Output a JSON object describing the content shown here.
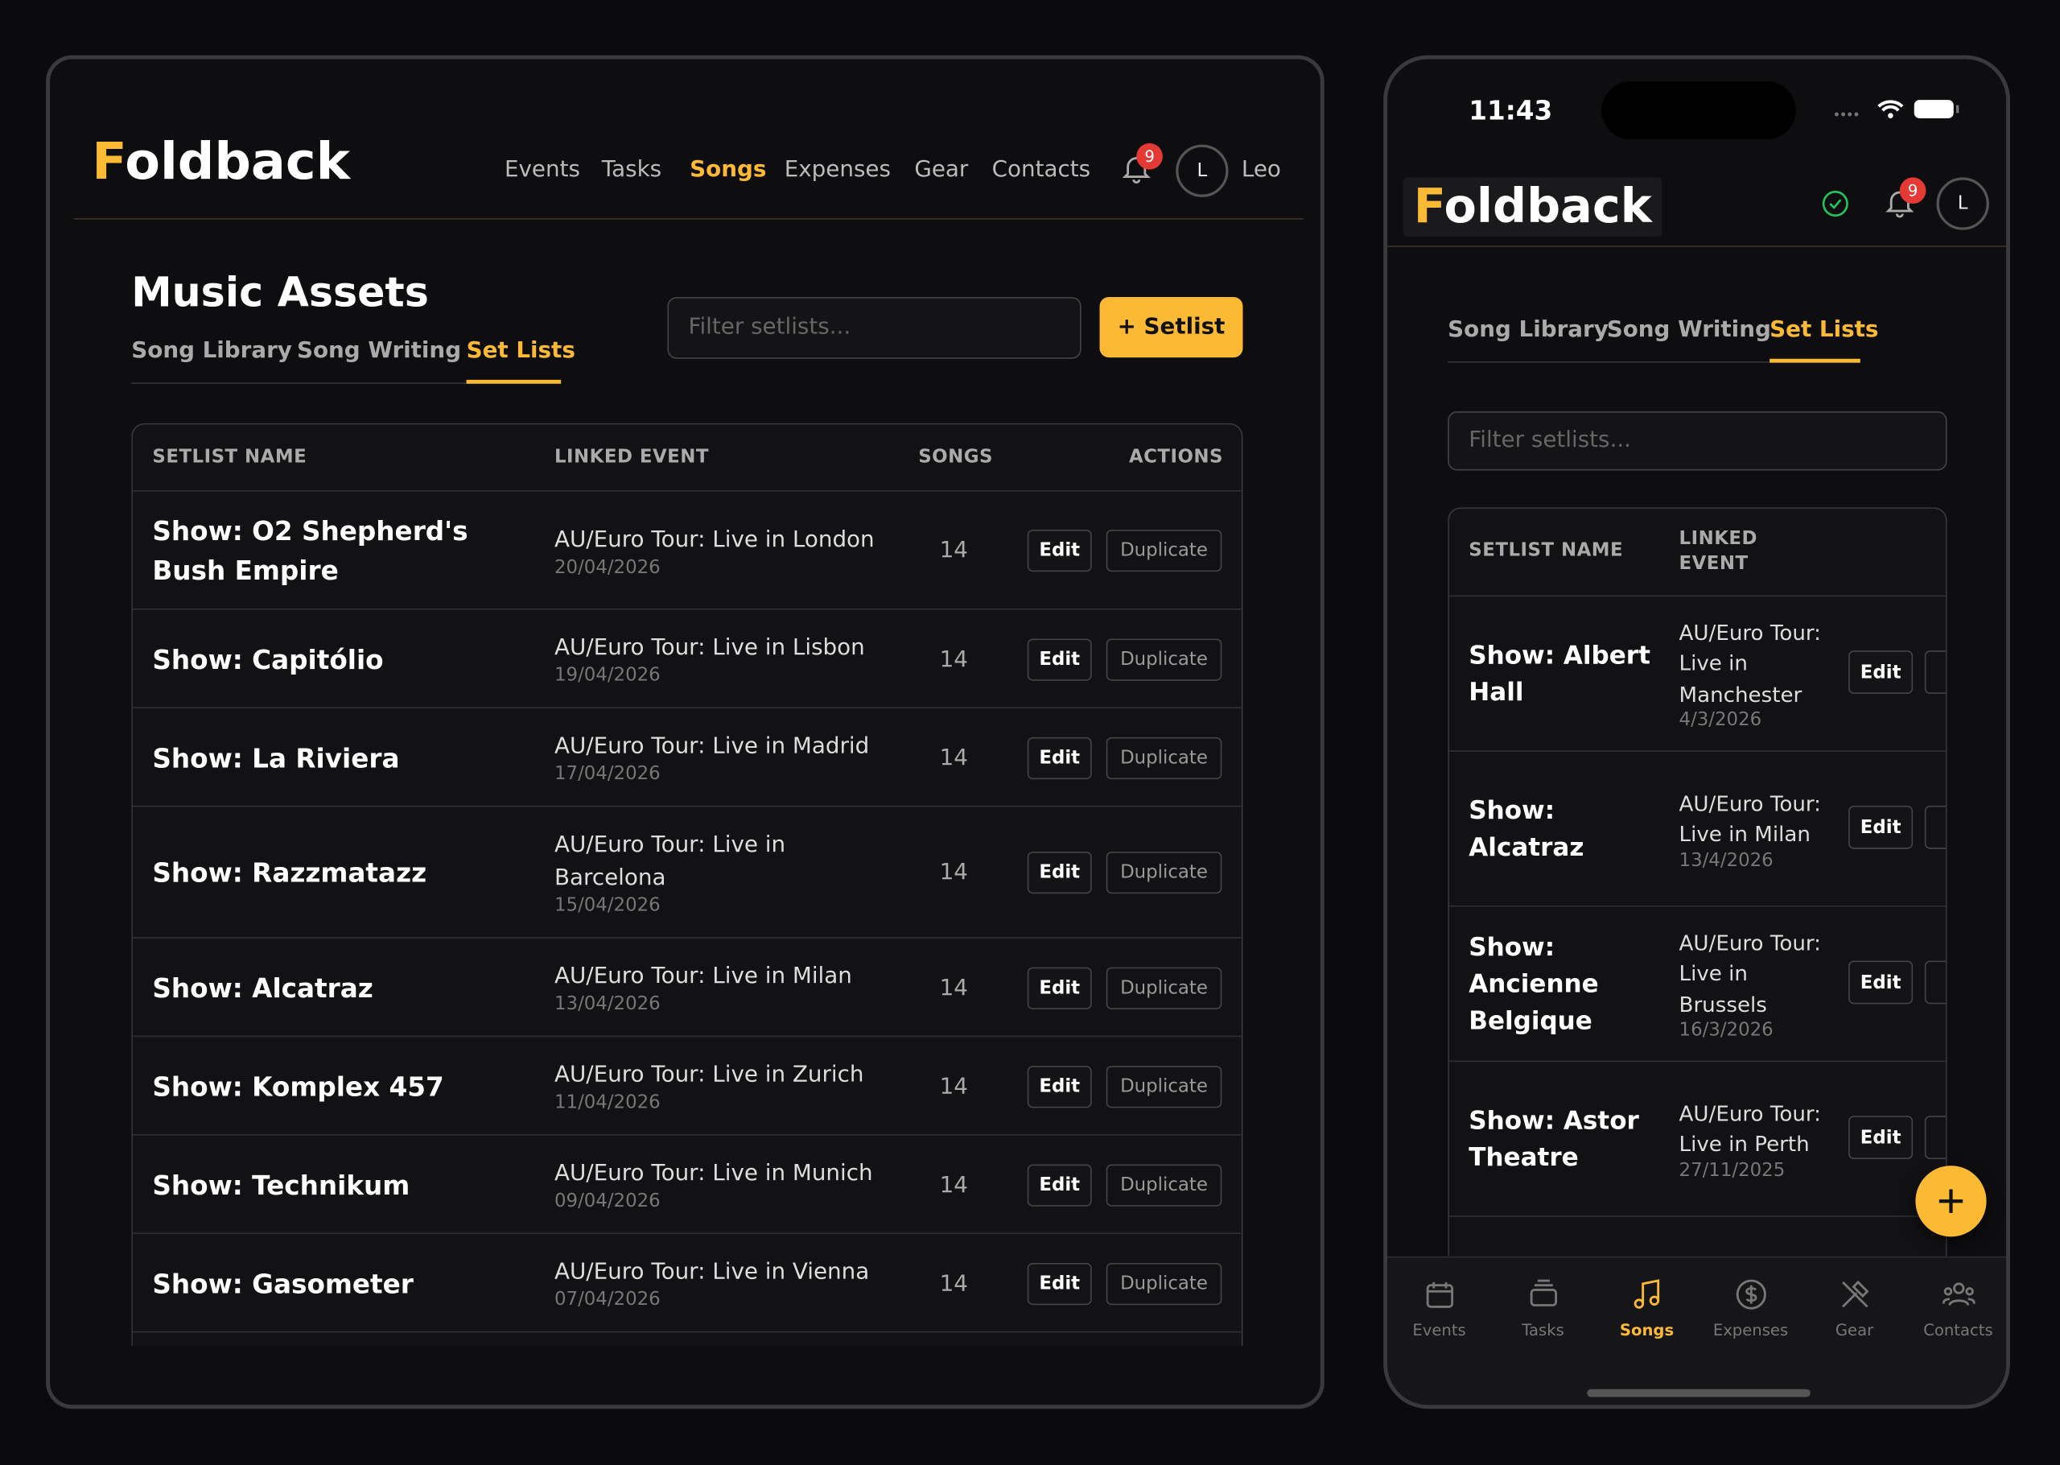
{
  "desktop": {
    "logo": "Foldback",
    "nav": [
      "Events",
      "Tasks",
      "Songs",
      "Expenses",
      "Gear",
      "Contacts"
    ],
    "active_nav": 2,
    "notifications": "9",
    "avatar": "L",
    "user": "Leo",
    "title": "Music Assets",
    "tabs": [
      "Song Library",
      "Song Writing",
      "Set Lists"
    ],
    "active_tab": 2,
    "filter_placeholder": "Filter setlists...",
    "add_button": "+ Setlist",
    "headers": [
      "SETLIST NAME",
      "LINKED EVENT",
      "SONGS",
      "ACTIONS"
    ],
    "actions": {
      "edit": "Edit",
      "duplicate": "Duplicate"
    },
    "rows": [
      {
        "name": "Show: O2 Shepherd's Bush Empire",
        "event": "AU/Euro Tour: Live in London",
        "date": "20/04/2026",
        "songs": "14"
      },
      {
        "name": "Show: Capitólio",
        "event": "AU/Euro Tour: Live in Lisbon",
        "date": "19/04/2026",
        "songs": "14"
      },
      {
        "name": "Show: La Riviera",
        "event": "AU/Euro Tour: Live in Madrid",
        "date": "17/04/2026",
        "songs": "14"
      },
      {
        "name": "Show: Razzmatazz",
        "event": "AU/Euro Tour: Live in Barcelona",
        "date": "15/04/2026",
        "songs": "14"
      },
      {
        "name": "Show: Alcatraz",
        "event": "AU/Euro Tour: Live in Milan",
        "date": "13/04/2026",
        "songs": "14"
      },
      {
        "name": "Show: Komplex 457",
        "event": "AU/Euro Tour: Live in Zurich",
        "date": "11/04/2026",
        "songs": "14"
      },
      {
        "name": "Show: Technikum",
        "event": "AU/Euro Tour: Live in Munich",
        "date": "09/04/2026",
        "songs": "14"
      },
      {
        "name": "Show: Gasometer",
        "event": "AU/Euro Tour: Live in Vienna",
        "date": "07/04/2026",
        "songs": "14"
      }
    ]
  },
  "mobile": {
    "time": "11:43",
    "logo": "Foldback",
    "notifications": "9",
    "avatar": "L",
    "tabs": [
      "Song Library",
      "Song Writing",
      "Set Lists"
    ],
    "active_tab": 2,
    "filter_placeholder": "Filter setlists...",
    "headers": [
      "SETLIST NAME",
      "LINKED EVENT"
    ],
    "actions": {
      "edit": "Edit"
    },
    "rows": [
      {
        "name": "Show: Albert Hall",
        "event": "AU/Euro Tour: Live in Manchester",
        "date": "4/3/2026"
      },
      {
        "name": "Show: Alcatraz",
        "event": "AU/Euro Tour: Live in Milan",
        "date": "13/4/2026"
      },
      {
        "name": "Show: Ancienne Belgique",
        "event": "AU/Euro Tour: Live in Brussels",
        "date": "16/3/2026"
      },
      {
        "name": "Show: Astor Theatre",
        "event": "AU/Euro Tour: Live in Perth",
        "date": "27/11/2025"
      }
    ],
    "bottom_nav": [
      "Events",
      "Tasks",
      "Songs",
      "Expenses",
      "Gear",
      "Contacts"
    ],
    "active_bottom": 2
  }
}
